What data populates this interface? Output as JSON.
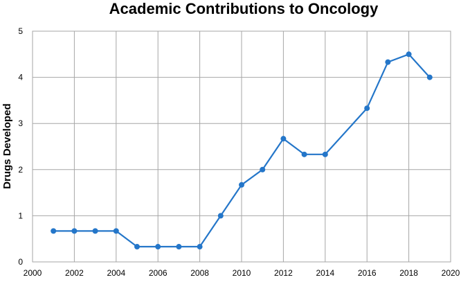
{
  "chart_data": {
    "type": "line",
    "title": "Academic Contributions to Oncology",
    "xlabel": "",
    "ylabel": "Drugs Developed",
    "xlim": [
      2000,
      2020
    ],
    "ylim": [
      0,
      5
    ],
    "x_ticks": [
      "2000",
      "2002",
      "2004",
      "2006",
      "2008",
      "2010",
      "2012",
      "2014",
      "2016",
      "2018",
      "2020"
    ],
    "y_ticks": [
      "0",
      "1",
      "2",
      "3",
      "4",
      "5"
    ],
    "grid": true,
    "legend": "none",
    "color": "#2476c9",
    "series": [
      {
        "x": [
          2001,
          2002,
          2003,
          2004,
          2005,
          2006,
          2007,
          2008,
          2009,
          2010,
          2011,
          2012,
          2013,
          2014,
          2016,
          2017,
          2018,
          2019
        ],
        "y": [
          0.67,
          0.67,
          0.67,
          0.67,
          0.33,
          0.33,
          0.33,
          0.33,
          1.0,
          1.67,
          2.0,
          2.67,
          2.33,
          2.33,
          3.33,
          4.33,
          4.5,
          4.0
        ]
      }
    ]
  }
}
